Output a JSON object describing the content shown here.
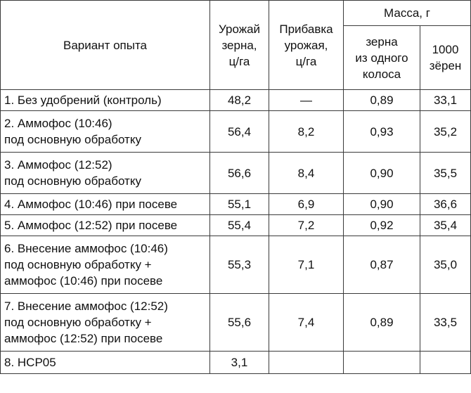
{
  "headers": {
    "variant": "Вариант опыта",
    "yield": [
      "Урожай",
      "зерна,",
      "ц/га"
    ],
    "increase": [
      "Прибавка",
      "урожая,",
      "ц/га"
    ],
    "mass": "Масса, г",
    "mass_ear": [
      "зерна",
      "из одного",
      "колоса"
    ],
    "mass_1000": [
      "1000",
      "зёрен"
    ]
  },
  "rows": [
    {
      "variant": [
        "1. Без удобрений (контроль)"
      ],
      "yield": "48,2",
      "increase": "—",
      "mass_ear": "0,89",
      "mass_1000": "33,1"
    },
    {
      "variant": [
        "2. Аммофос (10:46)",
        "под основную обработку"
      ],
      "yield": "56,4",
      "increase": "8,2",
      "mass_ear": "0,93",
      "mass_1000": "35,2"
    },
    {
      "variant": [
        "3. Аммофос (12:52)",
        "под основную обработку"
      ],
      "yield": "56,6",
      "increase": "8,4",
      "mass_ear": "0,90",
      "mass_1000": "35,5"
    },
    {
      "variant": [
        "4. Аммофос (10:46) при посеве"
      ],
      "yield": "55,1",
      "increase": "6,9",
      "mass_ear": "0,90",
      "mass_1000": "36,6"
    },
    {
      "variant": [
        "5. Аммофос (12:52) при посеве"
      ],
      "yield": "55,4",
      "increase": "7,2",
      "mass_ear": "0,92",
      "mass_1000": "35,4"
    },
    {
      "variant": [
        "6. Внесение аммофос (10:46)",
        "под основную обработку +",
        "аммофос (10:46) при посеве"
      ],
      "yield": "55,3",
      "increase": "7,1",
      "mass_ear": "0,87",
      "mass_1000": "35,0"
    },
    {
      "variant": [
        "7. Внесение аммофос (12:52)",
        "под основную обработку +",
        "аммофос (12:52) при посеве"
      ],
      "yield": "55,6",
      "increase": "7,4",
      "mass_ear": "0,89",
      "mass_1000": "33,5"
    },
    {
      "variant": [
        "8. НСР05"
      ],
      "yield": "3,1",
      "increase": "",
      "mass_ear": "",
      "mass_1000": ""
    }
  ]
}
